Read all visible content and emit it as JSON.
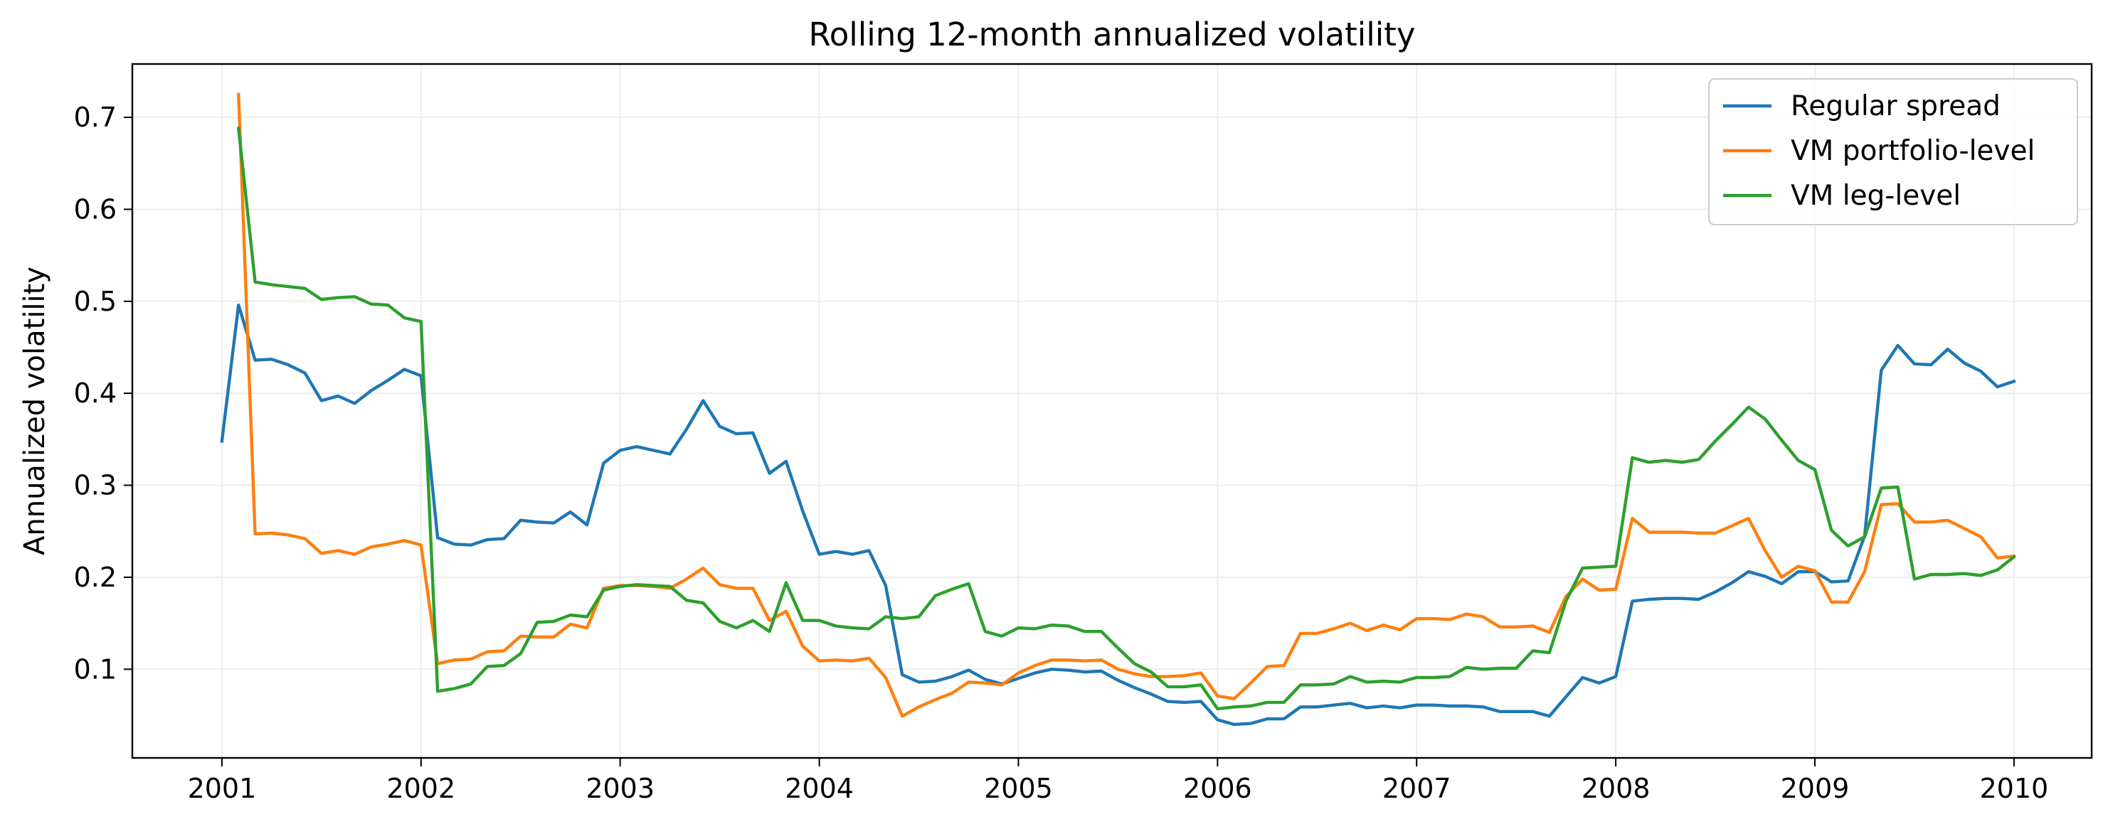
{
  "chart_data": {
    "type": "line",
    "title": "Rolling 12-month annualized volatility",
    "xlabel": "",
    "ylabel": "Annualized volatility",
    "xlim": [
      2000.55,
      2010.39
    ],
    "ylim": [
      0.0036,
      0.758
    ],
    "x_ticks": [
      2001,
      2002,
      2003,
      2004,
      2005,
      2006,
      2007,
      2008,
      2009,
      2010
    ],
    "x_tick_labels": [
      "2001",
      "2002",
      "2003",
      "2004",
      "2005",
      "2006",
      "2007",
      "2008",
      "2009",
      "2010"
    ],
    "y_ticks": [
      0.1,
      0.2,
      0.3,
      0.4,
      0.5,
      0.6,
      0.7
    ],
    "y_tick_labels": [
      "0.1",
      "0.2",
      "0.3",
      "0.4",
      "0.5",
      "0.6",
      "0.7"
    ],
    "grid": true,
    "legend_position": "top-right",
    "x_start_label": "2001-01",
    "x_step": "1 month",
    "series": [
      {
        "name": "Regular spread",
        "color": "#1f77b4",
        "values": [
          0.348,
          0.496,
          0.436,
          0.437,
          0.431,
          0.422,
          0.392,
          0.397,
          0.389,
          0.403,
          0.414,
          0.426,
          0.419,
          0.243,
          0.236,
          0.235,
          0.241,
          0.242,
          0.262,
          0.26,
          0.259,
          0.271,
          0.257,
          0.324,
          0.338,
          0.342,
          0.338,
          0.334,
          0.361,
          0.392,
          0.364,
          0.356,
          0.357,
          0.313,
          0.326,
          0.272,
          0.225,
          0.228,
          0.225,
          0.229,
          0.191,
          0.094,
          0.086,
          0.087,
          0.092,
          0.099,
          0.089,
          0.084,
          0.09,
          0.096,
          0.1,
          0.099,
          0.097,
          0.098,
          0.088,
          0.08,
          0.073,
          0.065,
          0.064,
          0.065,
          0.045,
          0.04,
          0.041,
          0.046,
          0.046,
          0.059,
          0.059,
          0.061,
          0.063,
          0.058,
          0.06,
          0.058,
          0.061,
          0.061,
          0.06,
          0.06,
          0.059,
          0.054,
          0.054,
          0.054,
          0.049,
          0.07,
          0.091,
          0.085,
          0.092,
          0.174,
          0.176,
          0.177,
          0.177,
          0.176,
          0.184,
          0.194,
          0.206,
          0.201,
          0.193,
          0.206,
          0.206,
          0.195,
          0.196,
          0.245,
          0.425,
          0.452,
          0.432,
          0.431,
          0.448,
          0.433,
          0.424,
          0.407,
          0.413
        ]
      },
      {
        "name": "VM portfolio-level",
        "color": "#ff7f0e",
        "values": [
          null,
          0.725,
          0.247,
          0.248,
          0.246,
          0.242,
          0.226,
          0.229,
          0.225,
          0.233,
          0.236,
          0.24,
          0.235,
          0.106,
          0.11,
          0.111,
          0.119,
          0.12,
          0.136,
          0.135,
          0.135,
          0.149,
          0.145,
          0.188,
          0.191,
          0.191,
          0.19,
          0.188,
          0.198,
          0.21,
          0.192,
          0.188,
          0.188,
          0.153,
          0.163,
          0.125,
          0.109,
          0.11,
          0.109,
          0.112,
          0.091,
          0.049,
          0.059,
          0.067,
          0.074,
          0.086,
          0.085,
          0.083,
          0.096,
          0.104,
          0.11,
          0.11,
          0.109,
          0.11,
          0.1,
          0.095,
          0.092,
          0.092,
          0.093,
          0.096,
          0.071,
          0.068,
          0.085,
          0.103,
          0.104,
          0.139,
          0.139,
          0.144,
          0.15,
          0.142,
          0.148,
          0.143,
          0.155,
          0.155,
          0.154,
          0.16,
          0.157,
          0.146,
          0.146,
          0.147,
          0.14,
          0.179,
          0.198,
          0.186,
          0.187,
          0.264,
          0.249,
          0.249,
          0.249,
          0.248,
          0.248,
          0.256,
          0.264,
          0.229,
          0.2,
          0.212,
          0.207,
          0.173,
          0.173,
          0.206,
          0.279,
          0.28,
          0.26,
          0.26,
          0.262,
          0.253,
          0.244,
          0.221,
          0.223
        ]
      },
      {
        "name": "VM leg-level",
        "color": "#2ca02c",
        "values": [
          null,
          0.688,
          0.521,
          0.518,
          0.516,
          0.514,
          0.502,
          0.504,
          0.505,
          0.497,
          0.496,
          0.482,
          0.478,
          0.076,
          0.079,
          0.084,
          0.103,
          0.104,
          0.117,
          0.151,
          0.152,
          0.159,
          0.157,
          0.186,
          0.19,
          0.192,
          0.191,
          0.19,
          0.175,
          0.172,
          0.152,
          0.145,
          0.153,
          0.141,
          0.194,
          0.153,
          0.153,
          0.147,
          0.145,
          0.144,
          0.157,
          0.155,
          0.157,
          0.18,
          0.187,
          0.193,
          0.141,
          0.136,
          0.145,
          0.144,
          0.148,
          0.147,
          0.141,
          0.141,
          0.123,
          0.106,
          0.097,
          0.081,
          0.081,
          0.083,
          0.057,
          0.059,
          0.06,
          0.064,
          0.064,
          0.083,
          0.083,
          0.084,
          0.092,
          0.086,
          0.087,
          0.086,
          0.091,
          0.091,
          0.092,
          0.102,
          0.1,
          0.101,
          0.101,
          0.12,
          0.118,
          0.174,
          0.21,
          0.211,
          0.212,
          0.33,
          0.325,
          0.327,
          0.325,
          0.328,
          0.348,
          0.366,
          0.385,
          0.372,
          0.349,
          0.327,
          0.317,
          0.251,
          0.234,
          0.244,
          0.297,
          0.298,
          0.198,
          0.203,
          0.203,
          0.204,
          0.202,
          0.208,
          0.222
        ]
      }
    ]
  }
}
